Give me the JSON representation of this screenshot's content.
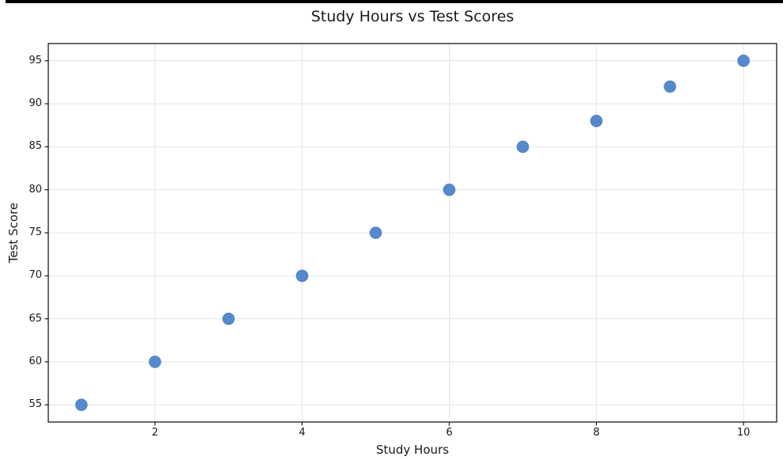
{
  "figure": {
    "background": "#ffffff",
    "top_edge_color": "#000000"
  },
  "chart_data": {
    "type": "scatter",
    "title": "Study Hours vs Test Scores",
    "xlabel": "Study Hours",
    "ylabel": "Test Score",
    "x": [
      1,
      2,
      3,
      4,
      5,
      6,
      7,
      8,
      9,
      10
    ],
    "y": [
      55,
      60,
      65,
      70,
      75,
      80,
      85,
      88,
      92,
      95
    ],
    "xlim": [
      0.55,
      10.45
    ],
    "ylim": [
      53,
      97
    ],
    "xticks": [
      2,
      4,
      6,
      8,
      10
    ],
    "yticks": [
      55,
      60,
      65,
      70,
      75,
      80,
      85,
      90,
      95
    ],
    "grid": true,
    "legend": "none",
    "grid_color": "#e4e4e4",
    "spine_color": "#1a1a1a",
    "text_color": "#1a1a1a",
    "marker_color": "#5589cb",
    "marker_edge_color": "#4478b6",
    "marker_radius": 7.5
  }
}
